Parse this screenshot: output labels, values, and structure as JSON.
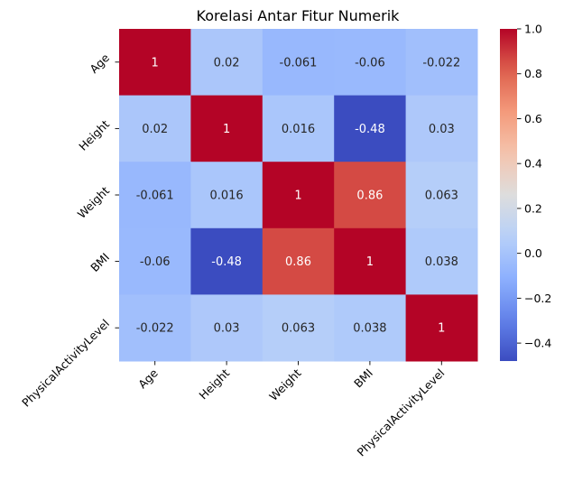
{
  "chart_data": {
    "type": "heatmap",
    "title": "Korelasi Antar Fitur Numerik",
    "xlabel": "",
    "ylabel": "",
    "x_categories": [
      "Age",
      "Height",
      "Weight",
      "BMI",
      "PhysicalActivityLevel"
    ],
    "y_categories": [
      "Age",
      "Height",
      "Weight",
      "BMI",
      "PhysicalActivityLevel"
    ],
    "values": [
      [
        1,
        0.02,
        -0.061,
        -0.06,
        -0.022
      ],
      [
        0.02,
        1,
        0.016,
        -0.48,
        0.03
      ],
      [
        -0.061,
        0.016,
        1,
        0.86,
        0.063
      ],
      [
        -0.06,
        -0.48,
        0.86,
        1,
        0.038
      ],
      [
        -0.022,
        0.03,
        0.063,
        0.038,
        1
      ]
    ],
    "value_labels": [
      [
        "1",
        "0.02",
        "-0.061",
        "-0.06",
        "-0.022"
      ],
      [
        "0.02",
        "1",
        "0.016",
        "-0.48",
        "0.03"
      ],
      [
        "-0.061",
        "0.016",
        "1",
        "0.86",
        "0.063"
      ],
      [
        "-0.06",
        "-0.48",
        "0.86",
        "1",
        "0.038"
      ],
      [
        "-0.022",
        "0.03",
        "0.063",
        "0.038",
        "1"
      ]
    ],
    "colormap": "coolwarm",
    "vmin": -0.48,
    "vmax": 1,
    "colorbar": {
      "ticks": [
        -0.4,
        -0.2,
        0.0,
        0.2,
        0.4,
        0.6,
        0.8,
        1.0
      ],
      "tick_labels": [
        "−0.4",
        "−0.2",
        "0.0",
        "0.2",
        "0.4",
        "0.6",
        "0.8",
        "1.0"
      ]
    },
    "annotated": true,
    "grid": false,
    "legend": "colorbar-right"
  }
}
